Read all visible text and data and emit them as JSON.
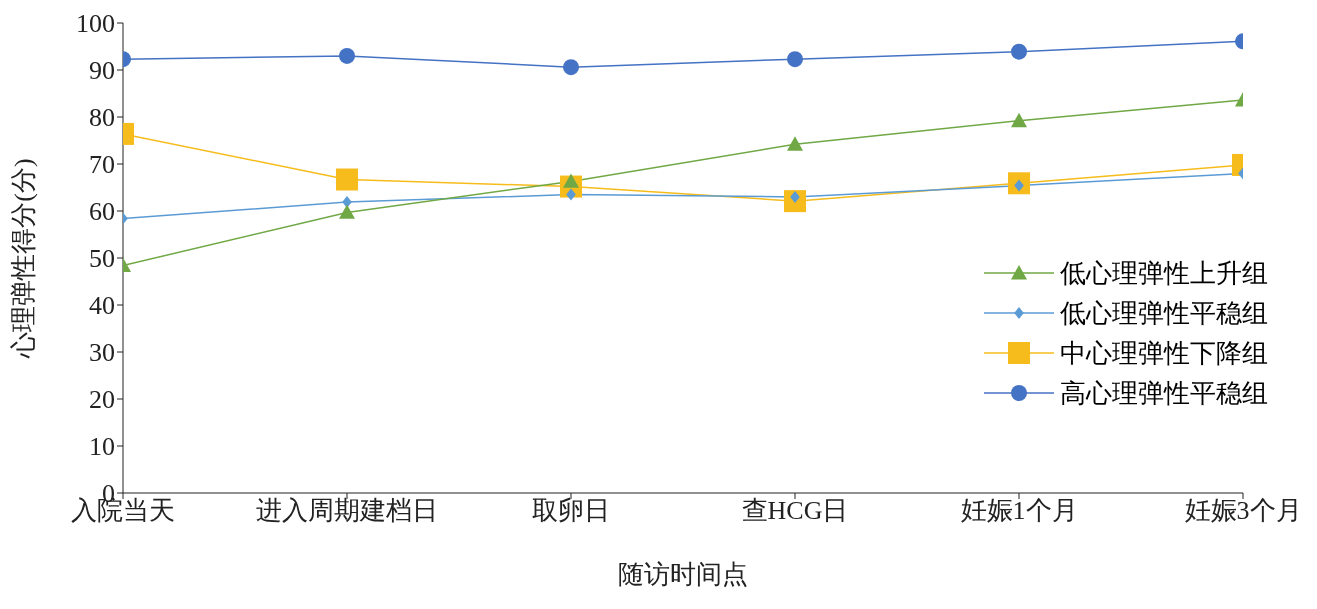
{
  "chart_data": {
    "type": "line",
    "xlabel": "随访时间点",
    "ylabel": "心理弹性得分(分)",
    "categories": [
      "入院当天",
      "进入周期建档日",
      "取卵日",
      "查HCG日",
      "妊娠1个月",
      "妊娠3个月"
    ],
    "ylim": [
      0,
      100
    ],
    "yticks": [
      0,
      10,
      20,
      30,
      40,
      50,
      60,
      70,
      80,
      90,
      100
    ],
    "grid": false,
    "legend": "right",
    "line_style": "solid",
    "series": [
      {
        "name": "低心理弹性上升组",
        "color": "#70a845",
        "marker": "triangle",
        "values": [
          48.4,
          59.7,
          66.3,
          74.2,
          79.2,
          83.6
        ]
      },
      {
        "name": "低心理弹性平稳组",
        "color": "#5b9bd5",
        "marker": "diamond",
        "values": [
          58.4,
          61.9,
          63.5,
          63,
          65.4,
          68
        ]
      },
      {
        "name": "中心理弹性下降组",
        "color": "#f6bc1c",
        "marker": "square",
        "values": [
          76.4,
          66.7,
          65.2,
          62.1,
          65.9,
          69.8
        ]
      },
      {
        "name": "高心理弹性平稳组",
        "color": "#4472c4",
        "marker": "circle",
        "values": [
          92.3,
          93,
          90.6,
          92.3,
          93.9,
          96.1
        ]
      }
    ]
  }
}
